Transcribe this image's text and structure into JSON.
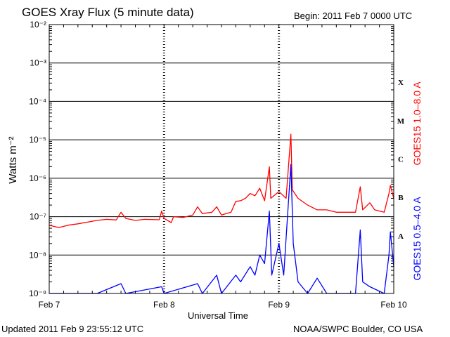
{
  "header": {
    "title": "GOES Xray Flux (5 minute data)",
    "begin": "Begin:  2011 Feb 7 0000 UTC"
  },
  "footer": {
    "updated": "Updated 2011 Feb  9 23:55:12 UTC",
    "credit": "NOAA/SWPC Boulder, CO USA"
  },
  "chart_data": {
    "type": "line",
    "xlabel": "Universal Time",
    "ylabel": "Watts m⁻²",
    "yscale": "log",
    "ylim": [
      1e-09,
      0.01
    ],
    "xlim": [
      0,
      72
    ],
    "x_unit": "hours since 2011 Feb 7 0000 UTC",
    "x_ticks": [
      {
        "x": 0,
        "label": "Feb 7"
      },
      {
        "x": 24,
        "label": "Feb 8"
      },
      {
        "x": 48,
        "label": "Feb 9"
      },
      {
        "x": 72,
        "label": "Feb 10"
      }
    ],
    "y_ticks": [
      {
        "exp": -9,
        "label": "10⁻⁹"
      },
      {
        "exp": -8,
        "label": "10⁻⁸"
      },
      {
        "exp": -7,
        "label": "10⁻⁷"
      },
      {
        "exp": -6,
        "label": "10⁻⁶"
      },
      {
        "exp": -5,
        "label": "10⁻⁵"
      },
      {
        "exp": -4,
        "label": "10⁻⁴"
      },
      {
        "exp": -3,
        "label": "10⁻³"
      },
      {
        "exp": -2,
        "label": "10⁻²"
      }
    ],
    "flare_classes": [
      {
        "label": "A",
        "exp": -8
      },
      {
        "label": "B",
        "exp": -7
      },
      {
        "label": "C",
        "exp": -6
      },
      {
        "label": "M",
        "exp": -5
      },
      {
        "label": "X",
        "exp": -4
      }
    ],
    "grid": true,
    "series": [
      {
        "name": "GOES15 1.0–8.0 A",
        "color": "#ff0000",
        "points": [
          [
            0,
            6e-08
          ],
          [
            2,
            5.2e-08
          ],
          [
            4,
            6e-08
          ],
          [
            6,
            6.5e-08
          ],
          [
            8,
            7.2e-08
          ],
          [
            10,
            8e-08
          ],
          [
            12,
            8.5e-08
          ],
          [
            14,
            8.2e-08
          ],
          [
            15,
            1.3e-07
          ],
          [
            16,
            9e-08
          ],
          [
            18,
            8e-08
          ],
          [
            20,
            8.5e-08
          ],
          [
            23,
            8.3e-08
          ],
          [
            23.5,
            1.4e-07
          ],
          [
            24,
            9e-08
          ],
          [
            25.5,
            7e-08
          ],
          [
            26,
            1e-07
          ],
          [
            28,
            9.5e-08
          ],
          [
            30,
            1.1e-07
          ],
          [
            31,
            1.8e-07
          ],
          [
            32,
            1.2e-07
          ],
          [
            34,
            1.3e-07
          ],
          [
            35,
            1.8e-07
          ],
          [
            36,
            1.1e-07
          ],
          [
            38,
            1.3e-07
          ],
          [
            39,
            2.5e-07
          ],
          [
            40,
            2.6e-07
          ],
          [
            41,
            3e-07
          ],
          [
            42,
            4e-07
          ],
          [
            43,
            3.5e-07
          ],
          [
            44,
            5.5e-07
          ],
          [
            45,
            2.6e-07
          ],
          [
            46,
            2e-06
          ],
          [
            46.3,
            3e-07
          ],
          [
            48,
            4.5e-07
          ],
          [
            49.5,
            3e-07
          ],
          [
            50.5,
            1.4e-05
          ],
          [
            50.8,
            5e-07
          ],
          [
            52,
            3e-07
          ],
          [
            54,
            2e-07
          ],
          [
            56,
            1.5e-07
          ],
          [
            58,
            1.5e-07
          ],
          [
            60,
            1.3e-07
          ],
          [
            62,
            1.3e-07
          ],
          [
            64,
            1.3e-07
          ],
          [
            65,
            6e-07
          ],
          [
            65.5,
            1.5e-07
          ],
          [
            67,
            2.3e-07
          ],
          [
            68,
            1.5e-07
          ],
          [
            70,
            1.3e-07
          ],
          [
            71,
            4e-07
          ],
          [
            71.3,
            6.5e-07
          ],
          [
            72,
            3e-07
          ]
        ]
      },
      {
        "name": "GOES15 0.5–4.0 A",
        "color": "#0000ff",
        "points": [
          [
            0,
            1e-09
          ],
          [
            6,
            1e-09
          ],
          [
            10,
            1e-09
          ],
          [
            15,
            1.8e-09
          ],
          [
            16,
            1e-09
          ],
          [
            23.5,
            1.5e-09
          ],
          [
            24,
            1e-09
          ],
          [
            31,
            1.8e-09
          ],
          [
            32,
            1e-09
          ],
          [
            35,
            3e-09
          ],
          [
            36,
            1e-09
          ],
          [
            39,
            3e-09
          ],
          [
            40,
            2e-09
          ],
          [
            42,
            5e-09
          ],
          [
            43,
            3e-09
          ],
          [
            44,
            1e-08
          ],
          [
            45,
            6e-09
          ],
          [
            46,
            1.4e-07
          ],
          [
            46.5,
            3e-09
          ],
          [
            48,
            2e-08
          ],
          [
            49,
            3e-09
          ],
          [
            50.5,
            2.3e-06
          ],
          [
            51,
            2e-08
          ],
          [
            52,
            2e-09
          ],
          [
            54,
            1e-09
          ],
          [
            56,
            2.5e-09
          ],
          [
            58,
            1e-09
          ],
          [
            64,
            1e-09
          ],
          [
            65,
            4.5e-08
          ],
          [
            65.5,
            2e-09
          ],
          [
            67,
            1.5e-09
          ],
          [
            70,
            1e-09
          ],
          [
            71,
            1e-08
          ],
          [
            71.3,
            4e-08
          ],
          [
            72,
            5e-09
          ]
        ]
      }
    ]
  }
}
